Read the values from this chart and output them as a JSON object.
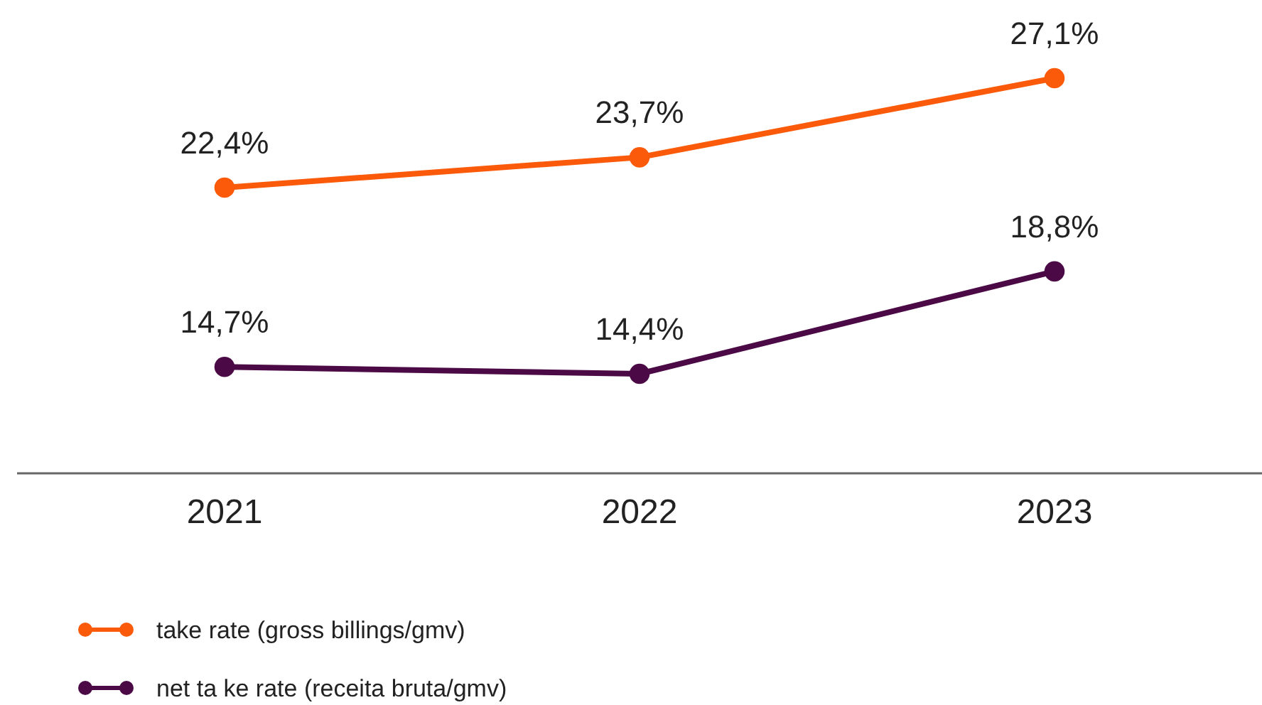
{
  "chart_data": {
    "type": "line",
    "categories": [
      "2021",
      "2022",
      "2023"
    ],
    "series": [
      {
        "name": "take rate (gross billings/gmv)",
        "color": "#fa5a0a",
        "values": [
          22.4,
          23.7,
          27.1
        ],
        "value_labels": [
          "22,4%",
          "23,7%",
          "27,1%"
        ]
      },
      {
        "name": "net ta ke rate (receita bruta/gmv)",
        "color": "#4b0a46",
        "values": [
          14.7,
          14.4,
          18.8
        ],
        "value_labels": [
          "14,7%",
          "14,4%",
          "18,8%"
        ]
      }
    ],
    "tick_labels": "x",
    "grid": false,
    "legend": "bottom left",
    "marker": "circle",
    "line_style": "solid"
  }
}
